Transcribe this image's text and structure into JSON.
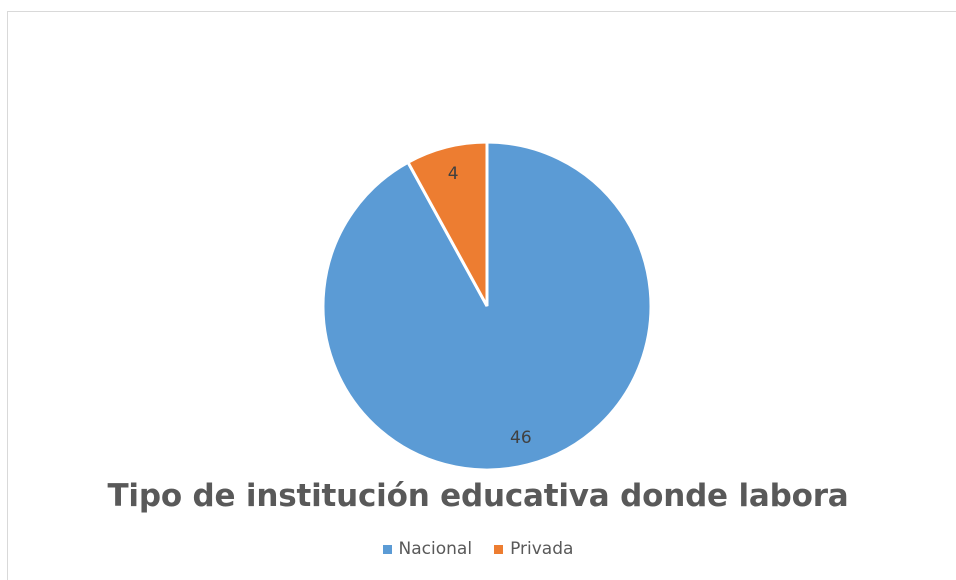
{
  "chart_data": {
    "type": "pie",
    "title": "Tipo de institución educativa donde labora",
    "categories": [
      "Nacional",
      "Privada"
    ],
    "values": [
      46,
      4
    ],
    "colors": [
      "#5b9bd5",
      "#ed7d31"
    ],
    "data_labels": [
      "46",
      "4"
    ],
    "legend_position": "bottom",
    "start_angle_deg": 0,
    "direction": "clockwise"
  }
}
